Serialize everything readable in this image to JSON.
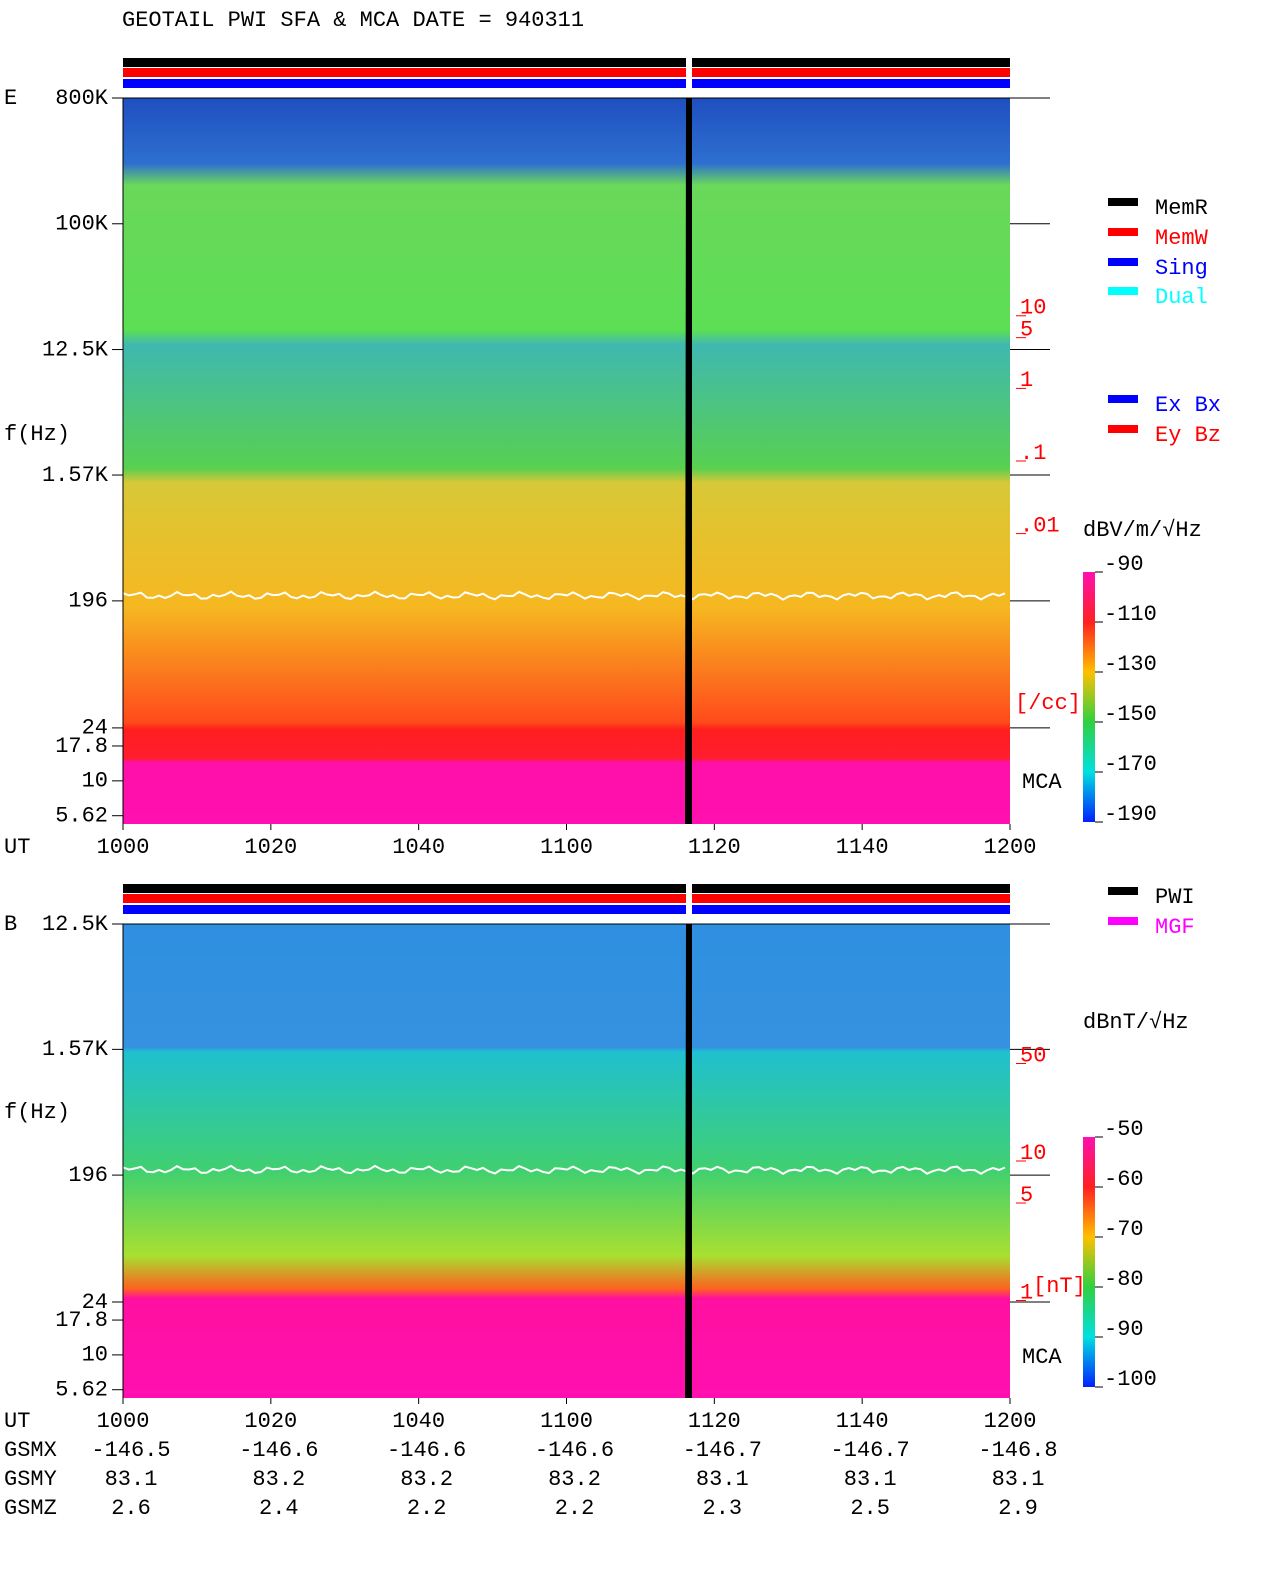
{
  "title": "GEOTAIL  PWI SFA & MCA   DATE = 940311",
  "chart_data": [
    {
      "type": "spectrogram",
      "panel_label": "E",
      "y_label": "f(Hz)",
      "x_label": "UT",
      "log_y": true,
      "ylim": [
        4.9,
        800000
      ],
      "yticks": [
        {
          "value": 800000,
          "label": "800K"
        },
        {
          "value": 100000,
          "label": "100K"
        },
        {
          "value": 12500,
          "label": "12.5K"
        },
        {
          "value": 1570,
          "label": "1.57K"
        },
        196,
        24,
        17.8,
        10,
        5.62
      ],
      "xlim": [
        600,
        720
      ],
      "xticks": [
        {
          "value": 600,
          "label": "1000"
        },
        {
          "value": 620,
          "label": "1020"
        },
        {
          "value": 640,
          "label": "1040"
        },
        {
          "value": 660,
          "label": "1100"
        },
        {
          "value": 680,
          "label": "1120"
        },
        {
          "value": 700,
          "label": "1140"
        },
        {
          "value": 720,
          "label": "1200"
        }
      ],
      "y2lim": [
        1e-06,
        10000
      ],
      "y2_label": "[/cc]",
      "y2_color": "#ff0000",
      "y2ticks": [
        10,
        5,
        1,
        {
          "value": 0.1,
          "label": ".1"
        },
        {
          "value": 0.01,
          "label": ".01"
        }
      ],
      "annotation": "MCA",
      "colorbar": {
        "label": "dBV/m/√Hz",
        "lim": [
          -190,
          -90
        ],
        "ticks": [
          -90,
          -110,
          -130,
          -150,
          -170,
          -190
        ]
      },
      "legend_groups": [
        [
          {
            "name": "MemR",
            "color": "#000000"
          },
          {
            "name": "MemW",
            "color": "#ff0000"
          },
          {
            "name": "Sing",
            "color": "#0000ff"
          },
          {
            "name": "Dual",
            "color": "#00ffff"
          }
        ],
        [
          {
            "name": "Ex Bx",
            "color": "#0000ff"
          },
          {
            "name": "Ey Bz",
            "color": "#ff0000"
          }
        ]
      ]
    },
    {
      "type": "spectrogram",
      "panel_label": "B",
      "y_label": "f(Hz)",
      "x_label": "UT",
      "log_y": true,
      "ylim": [
        4.9,
        12500
      ],
      "yticks": [
        {
          "value": 12500,
          "label": "12.5K"
        },
        {
          "value": 1570,
          "label": "1.57K"
        },
        196,
        24,
        17.8,
        10,
        5.62
      ],
      "xlim": [
        600,
        720
      ],
      "xticks": [
        {
          "value": 600,
          "label": "1000"
        },
        {
          "value": 620,
          "label": "1020"
        },
        {
          "value": 640,
          "label": "1040"
        },
        {
          "value": 660,
          "label": "1100"
        },
        {
          "value": 680,
          "label": "1120"
        },
        {
          "value": 700,
          "label": "1140"
        },
        {
          "value": 720,
          "label": "1200"
        }
      ],
      "y2lim": [
        0.2,
        500
      ],
      "y2_label": "[nT]",
      "y2_color": "#ff0000",
      "y2ticks": [
        50,
        10,
        5,
        1
      ],
      "annotation": "MCA",
      "colorbar": {
        "label": "dBnT/√Hz",
        "lim": [
          -100,
          -50
        ],
        "ticks": [
          -50,
          -60,
          -70,
          -80,
          -90,
          -100
        ]
      },
      "legend_groups": [
        [
          {
            "name": "PWI",
            "color": "#000000"
          },
          {
            "name": "MGF",
            "color": "#ff00ff"
          }
        ]
      ]
    }
  ],
  "orbit": {
    "rows": [
      {
        "name": "GSMX",
        "values": [
          -146.5,
          -146.6,
          -146.6,
          -146.6,
          -146.7,
          -146.7,
          -146.8
        ]
      },
      {
        "name": "GSMY",
        "values": [
          83.1,
          83.2,
          83.2,
          83.2,
          83.1,
          83.1,
          83.1
        ]
      },
      {
        "name": "GSMZ",
        "values": [
          2.6,
          2.4,
          2.2,
          2.2,
          2.3,
          2.5,
          2.9
        ]
      }
    ]
  }
}
